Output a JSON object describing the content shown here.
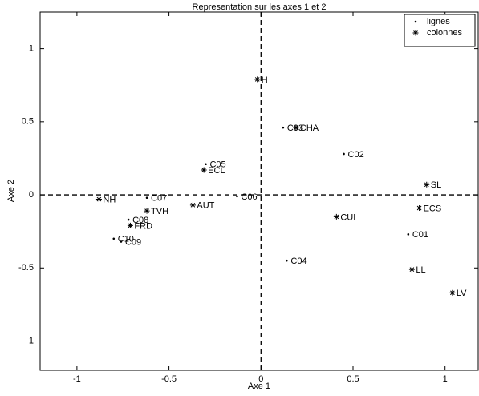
{
  "chart_data": {
    "type": "scatter",
    "title": "Representation sur les axes 1 et 2",
    "x_label": "Axe 1",
    "y_label": "Axe 2",
    "xlim": [
      -1.2,
      1.18
    ],
    "ylim": [
      -1.2,
      1.25
    ],
    "xticks": [
      -1,
      -0.5,
      0,
      0.5,
      1
    ],
    "yticks": [
      -1,
      -0.5,
      0,
      0.5,
      1
    ],
    "hlines": [
      0
    ],
    "vlines": [
      0
    ],
    "legend": "upper right",
    "series": [
      {
        "name": "lignes",
        "marker": "dot",
        "color": "#000000",
        "labels": [
          "C01",
          "C02",
          "C03",
          "C04",
          "C05",
          "C06",
          "C07",
          "C08",
          "C09",
          "C10"
        ],
        "x": [
          0.8,
          0.45,
          0.12,
          0.14,
          -0.3,
          -0.13,
          -0.62,
          -0.72,
          -0.76,
          -0.8
        ],
        "values": [
          -0.27,
          0.28,
          0.46,
          -0.45,
          0.21,
          -0.01,
          -0.02,
          -0.17,
          -0.32,
          -0.3
        ]
      },
      {
        "name": "colonnes",
        "marker": "star",
        "color": "#000000",
        "labels": [
          "H",
          "CHA",
          "ECL",
          "NH",
          "TVH",
          "FRD",
          "AUT",
          "CUI",
          "SL",
          "ECS",
          "LL",
          "LV"
        ],
        "x": [
          -0.02,
          0.19,
          -0.31,
          -0.88,
          -0.62,
          -0.71,
          -0.37,
          0.41,
          0.9,
          0.86,
          0.82,
          1.04
        ],
        "values": [
          0.79,
          0.46,
          0.17,
          -0.03,
          -0.11,
          -0.21,
          -0.07,
          -0.15,
          0.07,
          -0.09,
          -0.51,
          -0.67
        ]
      }
    ]
  }
}
